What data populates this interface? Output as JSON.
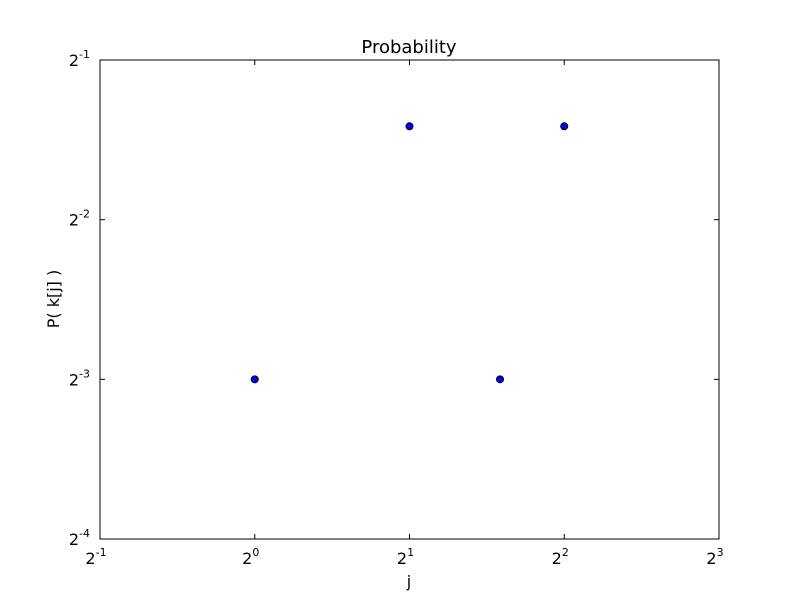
{
  "chart_data": {
    "type": "scatter",
    "title": "Probability",
    "xlabel": "j",
    "ylabel": "P( k[j] )",
    "x_scale": "log2",
    "y_scale": "log2",
    "xlim": [
      0.5,
      8
    ],
    "ylim": [
      0.0625,
      0.5
    ],
    "x_ticks": [
      {
        "base": "2",
        "exp": "-1",
        "value": 0.5
      },
      {
        "base": "2",
        "exp": "0",
        "value": 1
      },
      {
        "base": "2",
        "exp": "1",
        "value": 2
      },
      {
        "base": "2",
        "exp": "2",
        "value": 4
      },
      {
        "base": "2",
        "exp": "3",
        "value": 8
      }
    ],
    "y_ticks": [
      {
        "base": "2",
        "exp": "-4",
        "value": 0.0625
      },
      {
        "base": "2",
        "exp": "-3",
        "value": 0.125
      },
      {
        "base": "2",
        "exp": "-2",
        "value": 0.25
      },
      {
        "base": "2",
        "exp": "-1",
        "value": 0.5
      }
    ],
    "grid": false,
    "legend": "none",
    "marker_color": "#0000ff",
    "marker_edge_color": "#000000",
    "points": [
      {
        "x": 1,
        "y": 0.125
      },
      {
        "x": 2,
        "y": 0.375
      },
      {
        "x": 3,
        "y": 0.125
      },
      {
        "x": 4,
        "y": 0.375
      }
    ]
  }
}
